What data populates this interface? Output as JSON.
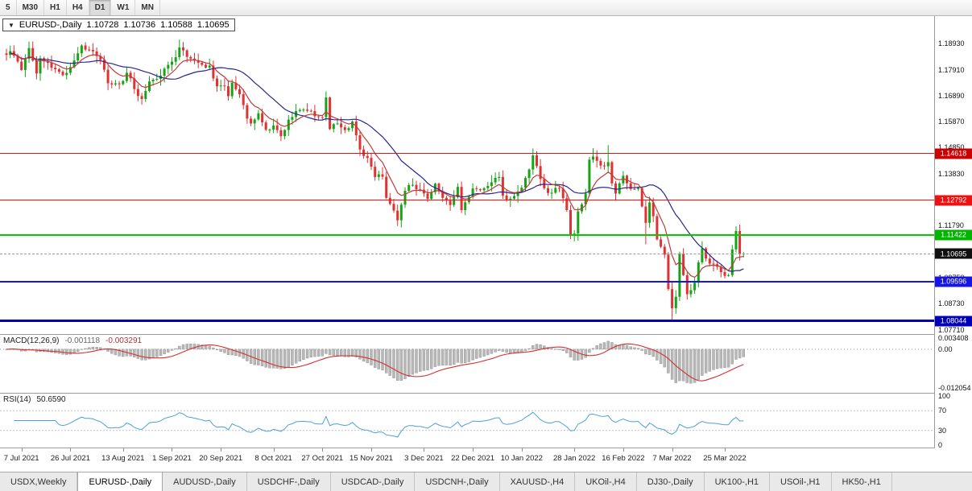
{
  "toolbar": {
    "timeframes": [
      "5",
      "M30",
      "H1",
      "H4",
      "D1",
      "W1",
      "MN"
    ],
    "active": "D1"
  },
  "chart_header": {
    "arrow": "▼",
    "title": "EURUSD-,Daily",
    "open": "1.10728",
    "high": "1.10736",
    "low": "1.10588",
    "close": "1.10695"
  },
  "price_axis": {
    "labels": [
      "1.18930",
      "1.17910",
      "1.16890",
      "1.15870",
      "1.14850",
      "1.13830",
      "1.12810",
      "1.11790",
      "1.10770",
      "1.09750",
      "1.08730",
      "1.07710"
    ]
  },
  "hlines": [
    {
      "price": 1.14618,
      "label": "1.14618",
      "color": "#b22222",
      "badge": "#cc0000",
      "width": 1
    },
    {
      "price": 1.12792,
      "label": "1.12792",
      "color": "#ee1111",
      "badge": "#ee1111",
      "width": 1
    },
    {
      "price": 1.11422,
      "label": "1.11422",
      "color": "#00cc00",
      "badge": "#00b400",
      "width": 2
    },
    {
      "price": 1.09596,
      "label": "1.09596",
      "color": "#1515e6",
      "badge": "#1515e6",
      "width": 2
    },
    {
      "price": 1.08044,
      "label": "1.08044",
      "color": "#0000bb",
      "badge": "#0000bb",
      "width": 3
    }
  ],
  "current_price": {
    "price": 1.10695,
    "label": "1.10695",
    "badge_color": "#101010"
  },
  "macd": {
    "label": "MACD(12,26,9)",
    "value_macd": "-0.001118",
    "value_signal": "-0.003291",
    "axis_labels": [
      "0.003408",
      "0.00",
      "-0.012054"
    ],
    "range_top": 0.0042,
    "range_bottom": -0.0132,
    "hist_color": "#b8b8b8",
    "signal_color": "#d63030",
    "fast": 12,
    "slow": 26,
    "signal": 9
  },
  "rsi": {
    "label": "RSI(14)",
    "value": "50.6590",
    "period": 14,
    "axis_labels": [
      "100",
      "70",
      "30",
      "0"
    ],
    "levels": [
      70,
      30
    ],
    "line_color": "#4d9fd6"
  },
  "tabs": {
    "items": [
      "USDX,Weekly",
      "EURUSD-,Daily",
      "AUDUSD-,Daily",
      "USDCHF-,Daily",
      "USDCAD-,Daily",
      "USDCNH-,Daily",
      "XAUUSD-,H4",
      "UKOil-,H4",
      "DJ30-,Daily",
      "UK100-,H1",
      "USOil-,H1",
      "HK50-,H1"
    ],
    "active": "EURUSD-,Daily"
  },
  "chart_data": {
    "type": "candlestick",
    "symbol": "EURUSD-",
    "timeframe": "Daily",
    "candles": 197,
    "x_start": 8,
    "x_spacing": 4.67,
    "seed": 11,
    "y_range": [
      1.076,
      1.1995
    ],
    "up_color": "#17a317",
    "down_color": "#e03232",
    "ma_fast": {
      "period": 8,
      "color": "#c03a3a"
    },
    "ma_slow": {
      "period": 20,
      "color": "#26268f"
    },
    "indicators": [
      "MACD(12,26,9)",
      "RSI(14)"
    ],
    "price_anchors": [
      [
        0,
        1.1849
      ],
      [
        1,
        1.1864
      ],
      [
        3,
        1.1823
      ],
      [
        4,
        1.179
      ],
      [
        6,
        1.1876
      ],
      [
        8,
        1.1776
      ],
      [
        9,
        1.1836
      ],
      [
        12,
        1.1799
      ],
      [
        15,
        1.177
      ],
      [
        17,
        1.1801
      ],
      [
        20,
        1.1886
      ],
      [
        21,
        1.187
      ],
      [
        23,
        1.1863
      ],
      [
        25,
        1.183
      ],
      [
        27,
        1.1738
      ],
      [
        30,
        1.1734
      ],
      [
        32,
        1.1779
      ],
      [
        34,
        1.1715
      ],
      [
        36,
        1.1676
      ],
      [
        38,
        1.1745
      ],
      [
        40,
        1.1755
      ],
      [
        42,
        1.1795
      ],
      [
        43,
        1.181
      ],
      [
        45,
        1.184
      ],
      [
        46,
        1.1878
      ],
      [
        48,
        1.1841
      ],
      [
        50,
        1.1827
      ],
      [
        52,
        1.181
      ],
      [
        54,
        1.1807
      ],
      [
        56,
        1.1726
      ],
      [
        58,
        1.1726
      ],
      [
        59,
        1.1687
      ],
      [
        60,
        1.174
      ],
      [
        62,
        1.1695
      ],
      [
        64,
        1.1599
      ],
      [
        65,
        1.158
      ],
      [
        67,
        1.162
      ],
      [
        69,
        1.1555
      ],
      [
        71,
        1.1572
      ],
      [
        73,
        1.153
      ],
      [
        75,
        1.1595
      ],
      [
        78,
        1.1633
      ],
      [
        80,
        1.163
      ],
      [
        82,
        1.1608
      ],
      [
        84,
        1.1605
      ],
      [
        85,
        1.1682
      ],
      [
        86,
        1.1558
      ],
      [
        88,
        1.158
      ],
      [
        90,
        1.1554
      ],
      [
        92,
        1.1588
      ],
      [
        94,
        1.1478
      ],
      [
        96,
        1.1445
      ],
      [
        98,
        1.137
      ],
      [
        100,
        1.1371
      ],
      [
        101,
        1.1288
      ],
      [
        103,
        1.1238
      ],
      [
        104,
        1.12
      ],
      [
        106,
        1.1316
      ],
      [
        108,
        1.1339
      ],
      [
        110,
        1.132
      ],
      [
        112,
        1.1284
      ],
      [
        114,
        1.1344
      ],
      [
        116,
        1.1288
      ],
      [
        118,
        1.126
      ],
      [
        120,
        1.1331
      ],
      [
        121,
        1.124
      ],
      [
        124,
        1.1325
      ],
      [
        127,
        1.1326
      ],
      [
        129,
        1.1349
      ],
      [
        131,
        1.137
      ],
      [
        132,
        1.1297
      ],
      [
        134,
        1.1285
      ],
      [
        135,
        1.1295
      ],
      [
        137,
        1.1328
      ],
      [
        138,
        1.1366
      ],
      [
        140,
        1.1455
      ],
      [
        141,
        1.1413
      ],
      [
        143,
        1.1326
      ],
      [
        145,
        1.1308
      ],
      [
        147,
        1.1324
      ],
      [
        149,
        1.124
      ],
      [
        150,
        1.1144
      ],
      [
        151,
        1.1148
      ],
      [
        152,
        1.1235
      ],
      [
        154,
        1.1305
      ],
      [
        155,
        1.1438
      ],
      [
        156,
        1.145
      ],
      [
        158,
        1.1415
      ],
      [
        160,
        1.1428
      ],
      [
        161,
        1.1345
      ],
      [
        162,
        1.1305
      ],
      [
        164,
        1.1375
      ],
      [
        166,
        1.1323
      ],
      [
        168,
        1.1327
      ],
      [
        170,
        1.119
      ],
      [
        171,
        1.127
      ],
      [
        172,
        1.1216
      ],
      [
        173,
        1.1125
      ],
      [
        175,
        1.1065
      ],
      [
        176,
        1.093
      ],
      [
        177,
        1.0855
      ],
      [
        178,
        1.09
      ],
      [
        179,
        1.107
      ],
      [
        180,
        1.0985
      ],
      [
        181,
        1.091
      ],
      [
        183,
        1.0955
      ],
      [
        184,
        1.1035
      ],
      [
        185,
        1.109
      ],
      [
        186,
        1.105
      ],
      [
        188,
        1.1028
      ],
      [
        190,
        1.0997
      ],
      [
        191,
        1.0982
      ],
      [
        192,
        1.0985
      ],
      [
        193,
        1.1086
      ],
      [
        194,
        1.1158
      ],
      [
        195,
        1.1067
      ],
      [
        196,
        1.10695
      ]
    ],
    "wick_overrides": [
      {
        "i": 46,
        "high": 1.1909
      },
      {
        "i": 140,
        "high": 1.1482
      },
      {
        "i": 156,
        "high": 1.1483
      },
      {
        "i": 160,
        "high": 1.1495
      },
      {
        "i": 170,
        "low": 1.1106
      },
      {
        "i": 177,
        "low": 1.0806
      },
      {
        "i": 194,
        "high": 1.1171
      }
    ],
    "x_labels": [
      {
        "i": 4,
        "t": "7 Jul 2021"
      },
      {
        "i": 17,
        "t": "26 Jul 2021"
      },
      {
        "i": 31,
        "t": "13 Aug 2021"
      },
      {
        "i": 44,
        "t": "1 Sep 2021"
      },
      {
        "i": 57,
        "t": "20 Sep 2021"
      },
      {
        "i": 71,
        "t": "8 Oct 2021"
      },
      {
        "i": 84,
        "t": "27 Oct 2021"
      },
      {
        "i": 97,
        "t": "15 Nov 2021"
      },
      {
        "i": 111,
        "t": "3 Dec 2021"
      },
      {
        "i": 124,
        "t": "22 Dec 2021"
      },
      {
        "i": 137,
        "t": "10 Jan 2022"
      },
      {
        "i": 151,
        "t": "28 Jan 2022"
      },
      {
        "i": 164,
        "t": "16 Feb 2022"
      },
      {
        "i": 177,
        "t": "7 Mar 2022"
      },
      {
        "i": 191,
        "t": "25 Mar 2022"
      }
    ]
  }
}
